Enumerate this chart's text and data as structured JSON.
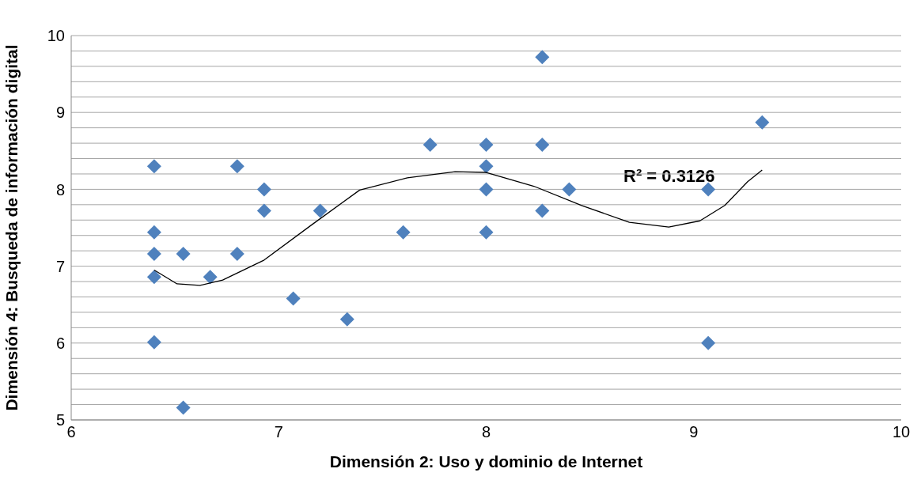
{
  "chart_data": {
    "type": "scatter",
    "xlabel": "Dimensión 2: Uso y dominio de Internet",
    "ylabel": "Dimensión 4: Busqueda de información digital",
    "xlim": [
      6,
      10
    ],
    "xticks": [
      6,
      7,
      8,
      9,
      10
    ],
    "ylim": [
      5,
      10
    ],
    "yticks": [
      5,
      {
        "value": 5.2,
        "label": null
      },
      {
        "value": 5.4,
        "label": null
      },
      {
        "value": 5.6,
        "label": null
      },
      {
        "value": 5.8,
        "label": null
      },
      6,
      {
        "value": 6.2,
        "label": null
      },
      {
        "value": 6.4,
        "label": null
      },
      {
        "value": 6.6,
        "label": null
      },
      {
        "value": 6.8,
        "label": null
      },
      7,
      {
        "value": 7.2,
        "label": null
      },
      {
        "value": 7.4,
        "label": null
      },
      {
        "value": 7.6,
        "label": null
      },
      {
        "value": 7.8,
        "label": null
      },
      8,
      {
        "value": 8.2,
        "label": null
      },
      {
        "value": 8.4,
        "label": null
      },
      {
        "value": 8.6,
        "label": null
      },
      {
        "value": 8.8,
        "label": null
      },
      9,
      {
        "value": 9.2,
        "label": null
      },
      {
        "value": 9.4,
        "label": null
      },
      {
        "value": 9.6,
        "label": null
      },
      {
        "value": 9.8,
        "label": null
      },
      10
    ],
    "grid": "y",
    "marker": "diamond",
    "series": [
      {
        "color": "#4f81bd",
        "x": [
          6.4,
          6.4,
          6.4,
          6.4,
          6.4,
          6.54,
          6.54,
          6.67,
          6.8,
          6.8,
          6.93,
          6.93,
          7.07,
          7.2,
          7.33,
          7.6,
          7.73,
          8.0,
          8.0,
          8.0,
          8.0,
          8.27,
          8.27,
          8.27,
          8.4,
          9.07,
          9.07,
          9.33
        ],
        "values": [
          8.3,
          7.44,
          7.16,
          6.86,
          6.01,
          7.16,
          5.16,
          6.86,
          8.3,
          7.16,
          8.0,
          7.72,
          6.58,
          7.72,
          6.31,
          7.44,
          8.58,
          8.58,
          8.3,
          8.0,
          7.44,
          9.72,
          8.58,
          7.72,
          8.0,
          8.0,
          6.0,
          8.87
        ]
      },
      {
        "type": "line",
        "color": "#000000",
        "marker": "none",
        "x": [
          6.4,
          6.51,
          6.62,
          6.73,
          6.93,
          7.16,
          7.39,
          7.62,
          7.85,
          8.0,
          8.23,
          8.46,
          8.69,
          8.88,
          9.03,
          9.15,
          9.26,
          9.33
        ],
        "values": [
          6.95,
          6.77,
          6.75,
          6.82,
          7.08,
          7.54,
          7.99,
          8.15,
          8.23,
          8.22,
          8.04,
          7.79,
          7.57,
          7.51,
          7.59,
          7.79,
          8.1,
          8.25
        ]
      }
    ],
    "annotations": [
      "R² = 0.3126"
    ]
  }
}
